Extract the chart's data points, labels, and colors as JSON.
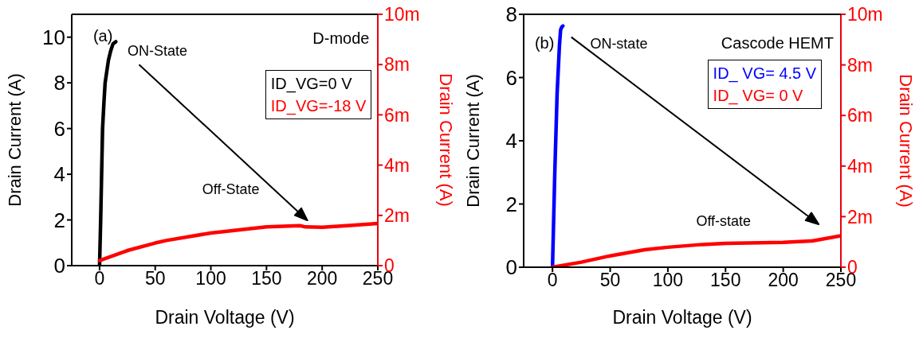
{
  "chart_data": [
    {
      "type": "line",
      "annotations": [
        "(a)",
        "D-mode",
        "ON-State",
        "Off-State"
      ],
      "xlabel": "Drain Voltage (V)",
      "ylabel": "Drain Current (A)",
      "y2label": "Drain Current (A)",
      "xlim": [
        -25,
        250
      ],
      "xticks": [
        0,
        50,
        100,
        150,
        200,
        250
      ],
      "ylim": [
        0,
        11
      ],
      "yticks": [
        0,
        2,
        4,
        6,
        8,
        10
      ],
      "y2lim": [
        0,
        10
      ],
      "y2ticks": [
        {
          "value": 0,
          "label": "0"
        },
        {
          "value": 2,
          "label": "2m"
        },
        {
          "value": 4,
          "label": "4m"
        },
        {
          "value": 6,
          "label": "6m"
        },
        {
          "value": 8,
          "label": "8m"
        },
        {
          "value": 10,
          "label": "10m"
        }
      ],
      "legend": "top right",
      "marker": "none",
      "series": [
        {
          "name": "ID_VG=0 V",
          "color": "#000000",
          "x": [
            0,
            1,
            2.7,
            4,
            5,
            8,
            10,
            12,
            14.6
          ],
          "values": [
            0,
            2,
            6,
            7.2,
            8,
            9,
            9.4,
            9.7,
            9.8
          ]
        },
        {
          "name": "ID_VG=-18 V",
          "color": "#ff0000",
          "axis": "y2",
          "x": [
            0,
            25,
            50,
            60,
            100,
            150,
            180,
            185,
            200,
            225,
            250
          ],
          "values": [
            0.2,
            0.6,
            0.9,
            1.0,
            1.3,
            1.54,
            1.59,
            1.54,
            1.53,
            1.6,
            1.68
          ]
        }
      ]
    },
    {
      "type": "line",
      "annotations": [
        "(b)",
        "Cascode HEMT",
        "ON-state",
        "Off-state"
      ],
      "xlabel": "Drain Voltage (V)",
      "ylabel": "Drain Current (A)",
      "y2label": "Drain Current (A)",
      "xlim": [
        -25,
        250
      ],
      "xticks": [
        0,
        50,
        100,
        150,
        200,
        250
      ],
      "ylim": [
        0,
        8
      ],
      "yticks": [
        0,
        2,
        4,
        6,
        8
      ],
      "y2lim": [
        0,
        10
      ],
      "y2ticks": [
        {
          "value": 0,
          "label": "0"
        },
        {
          "value": 2,
          "label": "2m"
        },
        {
          "value": 4,
          "label": "4m"
        },
        {
          "value": 6,
          "label": "6m"
        },
        {
          "value": 8,
          "label": "8m"
        },
        {
          "value": 10,
          "label": "10m"
        }
      ],
      "legend": "top right",
      "marker": "none",
      "series": [
        {
          "name": "ID_ VG= 4.5 V",
          "color": "#0000ff",
          "x": [
            0,
            2,
            4,
            6,
            7,
            8,
            9
          ],
          "values": [
            0,
            3,
            5.5,
            7,
            7.5,
            7.6,
            7.63
          ]
        },
        {
          "name": "ID_ VG= 0 V",
          "color": "#ff0000",
          "axis": "y2",
          "x": [
            0,
            25,
            50,
            80,
            100,
            130,
            150,
            200,
            225,
            250
          ],
          "values": [
            0,
            0.2,
            0.45,
            0.69,
            0.79,
            0.9,
            0.94,
            0.98,
            1.04,
            1.24
          ]
        }
      ]
    }
  ]
}
